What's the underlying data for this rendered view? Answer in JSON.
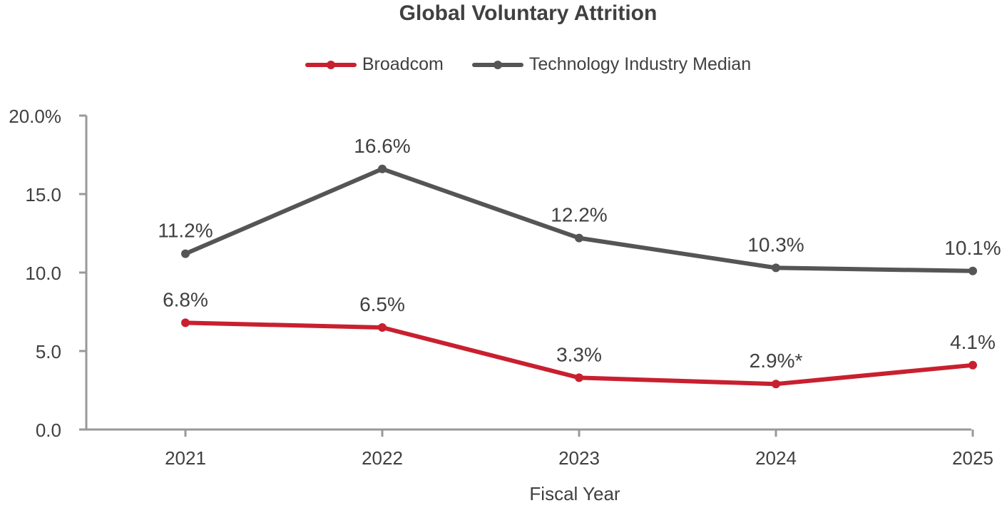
{
  "chart_data": {
    "type": "line",
    "title": "Global Voluntary Attrition",
    "xlabel": "Fiscal Year",
    "ylabel": "",
    "categories": [
      "2021",
      "2022",
      "2023",
      "2024",
      "2025"
    ],
    "ylim": [
      0,
      20
    ],
    "yticks": [
      0,
      5,
      10,
      15,
      20
    ],
    "ytick_labels": [
      "0.0",
      "5.0",
      "10.0",
      "15.0",
      "20.0%"
    ],
    "legend_position": "top-center",
    "grid": false,
    "series": [
      {
        "name": "Broadcom",
        "color": "#c8202f",
        "values": [
          6.8,
          6.5,
          3.3,
          2.9,
          4.1
        ],
        "labels": [
          "6.8%",
          "6.5%",
          "3.3%",
          "2.9%*",
          "4.1%"
        ]
      },
      {
        "name": "Technology Industry Median",
        "color": "#555555",
        "values": [
          11.2,
          16.6,
          12.2,
          10.3,
          10.1
        ],
        "labels": [
          "11.2%",
          "16.6%",
          "12.2%",
          "10.3%",
          "10.1%"
        ]
      }
    ]
  }
}
